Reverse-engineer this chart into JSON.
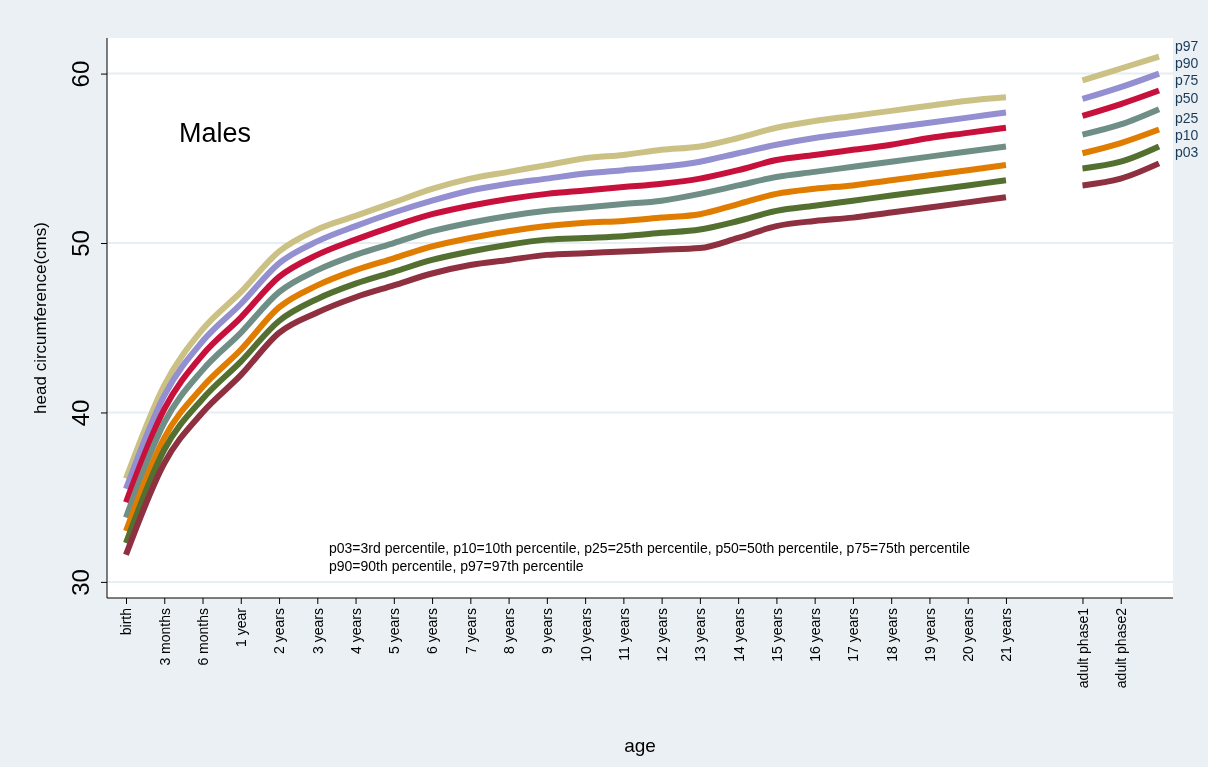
{
  "chart_data": {
    "type": "line",
    "xlabel": "age",
    "ylabel": "head circumference(cms)",
    "annotations": [
      "Males",
      "p03=3rd percentile, p10=10th percentile, p25=25th percentile, p50=50th percentile, p75=75th percentile",
      "p90=90th percentile, p97=97th percentile"
    ],
    "categories": [
      "birth",
      "3 months",
      "6 months",
      "1 year",
      "2 years",
      "3 years",
      "4 years",
      "5 years",
      "6 years",
      "7 years",
      "8 years",
      "9 years",
      "10 years",
      "11 years",
      "12 years",
      "13 years",
      "14 years",
      "15 years",
      "16 years",
      "17 years",
      "18 years",
      "19 years",
      "20 years",
      "21 years",
      null,
      "adult phase1",
      "adult phase2",
      null
    ],
    "series": [
      {
        "name": "p97",
        "color": "#cbc184",
        "values": [
          36.1,
          41.6,
          44.9,
          47.1,
          49.5,
          50.8,
          51.6,
          52.4,
          53.2,
          53.8,
          54.2,
          54.6,
          55.0,
          55.2,
          55.5,
          55.7,
          56.2,
          56.8,
          57.2,
          57.5,
          57.8,
          58.1,
          58.4,
          58.6,
          null,
          59.6,
          60.3,
          61.0
        ]
      },
      {
        "name": "p90",
        "color": "#938fd0",
        "values": [
          35.5,
          41.0,
          44.2,
          46.4,
          48.8,
          50.1,
          51.0,
          51.8,
          52.5,
          53.1,
          53.5,
          53.8,
          54.1,
          54.3,
          54.5,
          54.8,
          55.3,
          55.8,
          56.2,
          56.5,
          56.8,
          57.1,
          57.4,
          57.7,
          null,
          58.5,
          59.2,
          60.0
        ]
      },
      {
        "name": "p75",
        "color": "#c8103c",
        "values": [
          34.7,
          40.2,
          43.4,
          45.6,
          48.0,
          49.3,
          50.2,
          51.0,
          51.7,
          52.2,
          52.6,
          52.9,
          53.1,
          53.3,
          53.5,
          53.8,
          54.3,
          54.9,
          55.2,
          55.5,
          55.8,
          56.2,
          56.5,
          56.8,
          null,
          57.5,
          58.2,
          59.0
        ]
      },
      {
        "name": "p50",
        "color": "#6f8f86",
        "values": [
          33.8,
          39.4,
          42.5,
          44.7,
          47.1,
          48.4,
          49.3,
          50.0,
          50.7,
          51.2,
          51.6,
          51.9,
          52.1,
          52.3,
          52.5,
          52.9,
          53.4,
          53.9,
          54.2,
          54.5,
          54.8,
          55.1,
          55.4,
          55.7,
          null,
          56.4,
          57.0,
          57.9
        ]
      },
      {
        "name": "p25",
        "color": "#e07c00",
        "values": [
          33.0,
          38.5,
          41.5,
          43.7,
          46.2,
          47.5,
          48.4,
          49.1,
          49.8,
          50.3,
          50.7,
          51.0,
          51.2,
          51.3,
          51.5,
          51.7,
          52.3,
          52.9,
          53.2,
          53.4,
          53.7,
          54.0,
          54.3,
          54.6,
          null,
          55.3,
          55.9,
          56.7
        ]
      },
      {
        "name": "p10",
        "color": "#537030",
        "values": [
          32.3,
          37.8,
          40.8,
          43.0,
          45.4,
          46.7,
          47.6,
          48.3,
          49.0,
          49.5,
          49.9,
          50.2,
          50.3,
          50.4,
          50.6,
          50.8,
          51.3,
          51.9,
          52.2,
          52.5,
          52.8,
          53.1,
          53.4,
          53.7,
          null,
          54.4,
          54.8,
          55.7
        ]
      },
      {
        "name": "p03",
        "color": "#8f3040",
        "values": [
          31.6,
          37.0,
          40.0,
          42.2,
          44.7,
          45.9,
          46.8,
          47.5,
          48.2,
          48.7,
          49.0,
          49.3,
          49.4,
          49.5,
          49.6,
          49.7,
          50.3,
          51.0,
          51.3,
          51.5,
          51.8,
          52.1,
          52.4,
          52.7,
          null,
          53.4,
          53.8,
          54.7
        ]
      }
    ],
    "ylim": [
      29.05,
      62.1
    ],
    "yticks": [
      30,
      40,
      50,
      60
    ],
    "grid": "y",
    "line_style": "solid"
  }
}
